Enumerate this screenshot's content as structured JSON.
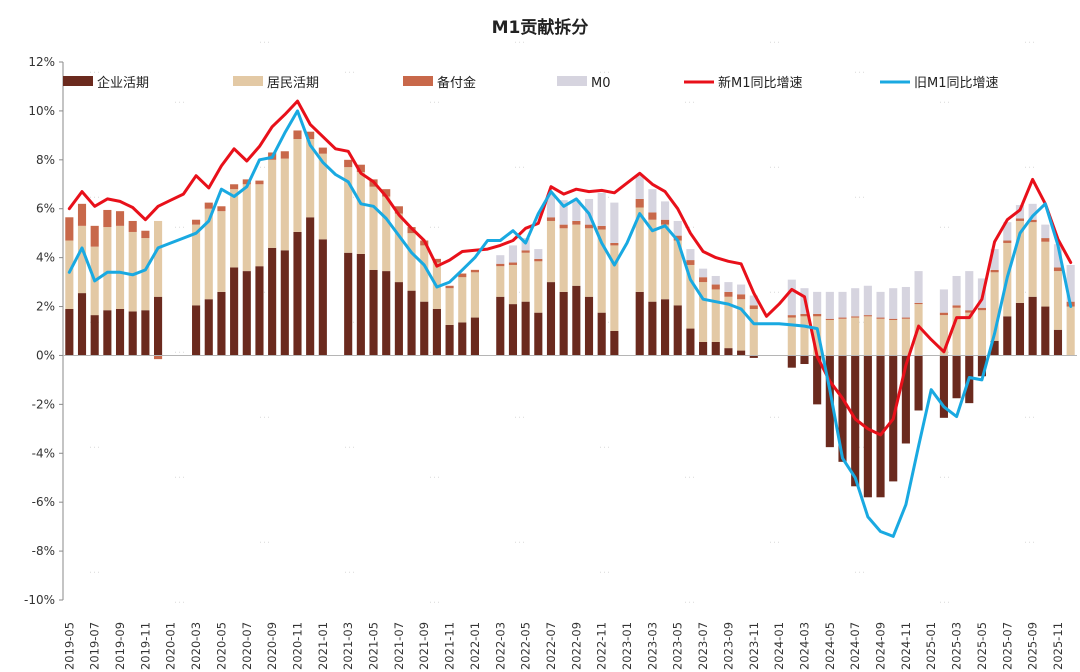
{
  "chart_data": {
    "type": "bar",
    "title": "M1贡献拆分",
    "xlabel": "",
    "ylabel": "",
    "ylim": [
      -10,
      12
    ],
    "y_step": 2,
    "y_tick_labels": [
      "-10%",
      "-8%",
      "-6%",
      "-4%",
      "-2%",
      "0%",
      "2%",
      "4%",
      "6%",
      "8%",
      "10%",
      "12%"
    ],
    "x_tick_labels": [
      "2019-05",
      "2019-07",
      "2019-09",
      "2019-11",
      "2020-01",
      "2020-03",
      "2020-05",
      "2020-07",
      "2020-09",
      "2020-11",
      "2021-01",
      "2021-03",
      "2021-05",
      "2021-07",
      "2021-09",
      "2021-11",
      "2022-01",
      "2022-03",
      "2022-05",
      "2022-07",
      "2022-09",
      "2022-11",
      "2023-01",
      "2023-03",
      "2023-05",
      "2023-07",
      "2023-09",
      "2023-11",
      "2024-01",
      "2024-03",
      "2024-05",
      "2024-07",
      "2024-09",
      "2024-11",
      "2025-01",
      "2025-03",
      "2025-05",
      "2025-07",
      "2025-09",
      "2025-11"
    ],
    "categories": [
      "2019-05",
      "2019-06",
      "2019-07",
      "2019-08",
      "2019-09",
      "2019-10",
      "2019-11",
      "2019-12",
      "2020-01",
      "2020-02",
      "2020-03",
      "2020-04",
      "2020-05",
      "2020-06",
      "2020-07",
      "2020-08",
      "2020-09",
      "2020-10",
      "2020-11",
      "2020-12",
      "2021-01",
      "2021-02",
      "2021-03",
      "2021-04",
      "2021-05",
      "2021-06",
      "2021-07",
      "2021-08",
      "2021-09",
      "2021-10",
      "2021-11",
      "2021-12",
      "2022-01",
      "2022-02",
      "2022-03",
      "2022-04",
      "2022-05",
      "2022-06",
      "2022-07",
      "2022-08",
      "2022-09",
      "2022-10",
      "2022-11",
      "2022-12",
      "2023-01",
      "2023-02",
      "2023-03",
      "2023-04",
      "2023-05",
      "2023-06",
      "2023-07",
      "2023-08",
      "2023-09",
      "2023-10",
      "2023-11",
      "2023-12",
      "2024-01",
      "2024-02",
      "2024-03",
      "2024-04",
      "2024-05",
      "2024-06",
      "2024-07",
      "2024-08",
      "2024-09",
      "2024-10",
      "2024-11",
      "2024-12",
      "2025-01",
      "2025-02",
      "2025-03",
      "2025-04",
      "2025-05",
      "2025-06",
      "2025-07",
      "2025-08",
      "2025-09",
      "2025-10",
      "2025-11",
      "2025-12"
    ],
    "series": [
      {
        "name": "企业活期",
        "type": "bar",
        "color": "#6b2a1e",
        "values": [
          1.9,
          2.55,
          1.65,
          1.85,
          1.9,
          1.8,
          1.85,
          2.4,
          null,
          null,
          2.05,
          2.3,
          2.6,
          3.6,
          3.45,
          3.65,
          4.4,
          4.3,
          5.05,
          5.65,
          4.75,
          null,
          4.2,
          4.15,
          3.5,
          3.45,
          3.0,
          2.65,
          2.2,
          1.9,
          1.25,
          1.35,
          1.55,
          null,
          2.4,
          2.1,
          2.2,
          1.75,
          3.0,
          2.6,
          2.85,
          2.4,
          1.75,
          1.0,
          null,
          2.6,
          2.2,
          2.3,
          2.05,
          1.1,
          0.55,
          0.55,
          0.3,
          0.2,
          -0.1,
          null,
          null,
          -0.5,
          -0.35,
          -2.0,
          -3.75,
          -4.35,
          -5.35,
          -5.8,
          -5.8,
          -5.15,
          -3.6,
          -2.25,
          null,
          -2.55,
          -1.75,
          -1.95,
          -0.85,
          0.6,
          1.6,
          2.15,
          2.4,
          2.0,
          1.05,
          null
        ]
      },
      {
        "name": "居民活期",
        "type": "bar",
        "color": "#e3c9a5",
        "values": [
          2.8,
          2.75,
          2.8,
          3.4,
          3.4,
          3.25,
          2.95,
          3.1,
          null,
          null,
          3.3,
          3.7,
          3.3,
          3.2,
          3.55,
          3.35,
          3.6,
          3.75,
          3.8,
          3.2,
          3.5,
          null,
          3.5,
          3.35,
          3.4,
          3.05,
          2.8,
          2.35,
          2.3,
          1.9,
          1.5,
          1.85,
          1.85,
          null,
          1.25,
          1.6,
          2.0,
          2.1,
          2.5,
          2.6,
          2.5,
          2.8,
          3.4,
          3.5,
          null,
          3.45,
          3.35,
          3.05,
          2.65,
          2.6,
          2.45,
          2.15,
          2.1,
          2.1,
          1.9,
          null,
          null,
          1.55,
          1.6,
          1.6,
          1.45,
          1.5,
          1.55,
          1.6,
          1.5,
          1.45,
          1.5,
          2.1,
          null,
          1.65,
          1.95,
          1.75,
          1.85,
          2.8,
          3.0,
          3.35,
          3.05,
          2.65,
          2.4,
          2.0
        ]
      },
      {
        "name": "备付金",
        "type": "bar",
        "color": "#c8684a",
        "values": [
          0.95,
          0.9,
          0.85,
          0.7,
          0.6,
          0.45,
          0.3,
          -0.15,
          null,
          null,
          0.2,
          0.25,
          0.2,
          0.2,
          0.2,
          0.15,
          0.3,
          0.3,
          0.35,
          0.3,
          0.25,
          null,
          0.3,
          0.3,
          0.3,
          0.3,
          0.3,
          0.25,
          0.2,
          0.15,
          0.1,
          0.15,
          0.1,
          null,
          0.1,
          0.1,
          0.1,
          0.1,
          0.15,
          0.15,
          0.15,
          0.15,
          0.15,
          0.1,
          null,
          0.35,
          0.3,
          0.2,
          0.2,
          0.2,
          0.2,
          0.2,
          0.2,
          0.2,
          0.15,
          null,
          null,
          0.1,
          0.1,
          0.1,
          0.05,
          0.05,
          0.05,
          0.05,
          0.05,
          0.05,
          0.05,
          0.05,
          null,
          0.1,
          0.1,
          0.1,
          0.1,
          0.1,
          0.1,
          0.1,
          0.1,
          0.15,
          0.15,
          0.2
        ]
      },
      {
        "name": "M0",
        "type": "bar",
        "color": "#d6d4df",
        "values": [
          0.0,
          0.0,
          0.0,
          0.0,
          0.0,
          0.0,
          0.0,
          0.0,
          null,
          null,
          0.0,
          0.0,
          0.0,
          0.0,
          0.0,
          0.0,
          0.0,
          0.0,
          0.0,
          0.0,
          0.0,
          null,
          0.0,
          0.0,
          0.0,
          0.0,
          0.0,
          0.0,
          0.0,
          0.0,
          0.0,
          0.0,
          0.0,
          null,
          0.35,
          0.7,
          0.5,
          0.4,
          0.95,
          1.0,
          0.85,
          1.05,
          1.35,
          1.65,
          null,
          1.0,
          0.95,
          0.75,
          0.6,
          0.45,
          0.35,
          0.35,
          0.4,
          0.4,
          0.4,
          null,
          null,
          1.45,
          1.05,
          0.9,
          1.1,
          1.05,
          1.15,
          1.2,
          1.05,
          1.25,
          1.25,
          1.3,
          null,
          0.95,
          1.2,
          1.6,
          1.2,
          0.85,
          0.75,
          0.55,
          0.65,
          0.55,
          0.95,
          1.5
        ]
      },
      {
        "name": "新M1同比增速",
        "type": "line",
        "color": "#e8101a",
        "values": [
          6.0,
          6.7,
          6.1,
          6.4,
          6.3,
          6.05,
          5.55,
          6.1,
          6.35,
          6.6,
          7.35,
          6.85,
          7.75,
          8.45,
          7.95,
          8.55,
          9.35,
          9.85,
          10.4,
          9.45,
          8.95,
          8.45,
          8.35,
          7.45,
          7.1,
          6.5,
          5.75,
          5.2,
          4.7,
          3.65,
          3.9,
          4.25,
          4.3,
          4.35,
          4.5,
          4.7,
          5.2,
          5.4,
          6.9,
          6.6,
          6.8,
          6.7,
          6.75,
          6.65,
          7.05,
          7.45,
          7.0,
          6.7,
          6.0,
          5.0,
          4.25,
          4.0,
          3.85,
          3.75,
          2.55,
          1.6,
          2.1,
          2.7,
          2.4,
          -0.05,
          -1.05,
          -1.75,
          -2.6,
          -3.0,
          -3.25,
          -2.6,
          -0.4,
          1.2,
          0.65,
          0.15,
          1.55,
          1.55,
          2.3,
          4.65,
          5.55,
          5.95,
          7.2,
          6.2,
          4.75,
          3.8
        ]
      },
      {
        "name": "旧M1同比增速",
        "type": "line",
        "color": "#19a9e1",
        "values": [
          3.4,
          4.4,
          3.05,
          3.4,
          3.4,
          3.3,
          3.5,
          4.4,
          4.6,
          4.8,
          5.0,
          5.5,
          6.8,
          6.5,
          6.9,
          8.0,
          8.1,
          9.1,
          10.0,
          8.6,
          7.9,
          7.4,
          7.1,
          6.2,
          6.1,
          5.6,
          4.9,
          4.2,
          3.7,
          2.8,
          3.0,
          3.5,
          4.0,
          4.7,
          4.7,
          5.1,
          4.6,
          5.8,
          6.7,
          6.1,
          6.4,
          5.8,
          4.6,
          3.7,
          4.6,
          5.8,
          5.1,
          5.3,
          4.7,
          3.1,
          2.3,
          2.2,
          2.1,
          1.9,
          1.3,
          1.3,
          1.3,
          1.25,
          1.2,
          1.1,
          -1.4,
          -4.2,
          -5.0,
          -6.6,
          -7.2,
          -7.4,
          -6.1,
          -3.7,
          -1.4,
          -2.1,
          -2.5,
          -0.9,
          -1.0,
          0.9,
          3.2,
          5.0,
          5.7,
          6.2,
          4.5,
          2.0
        ]
      }
    ],
    "legend": [
      "企业活期",
      "居民活期",
      "备付金",
      "M0",
      "新M1同比增速",
      "旧M1同比增速"
    ],
    "legend_position": "top",
    "grid": false
  }
}
